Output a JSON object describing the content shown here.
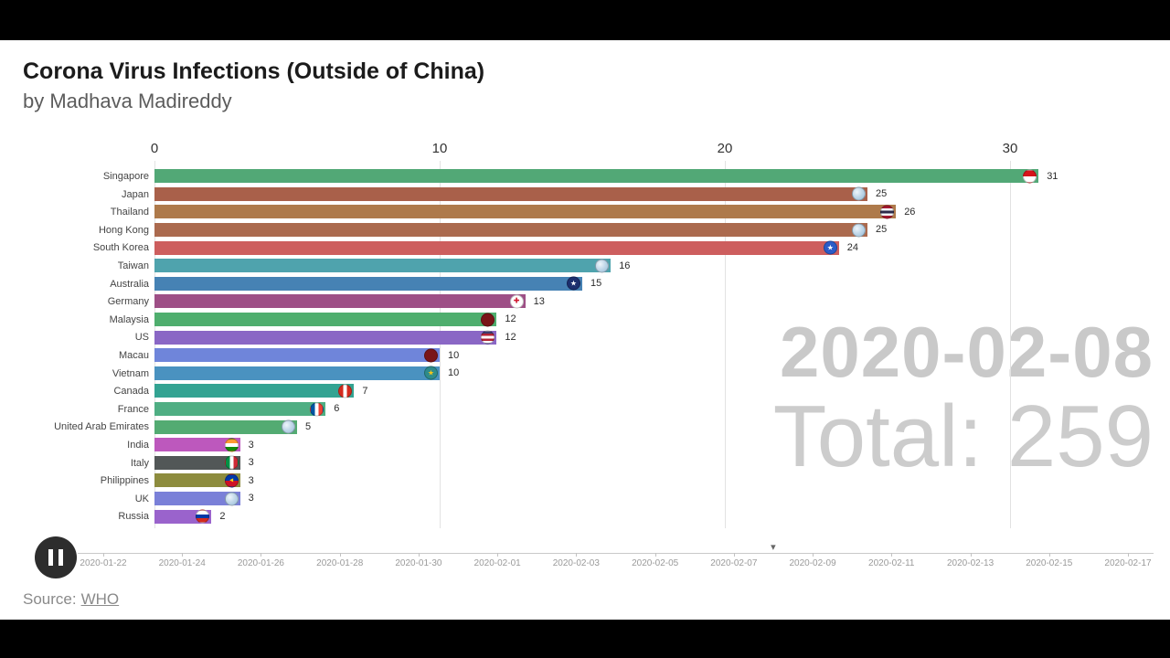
{
  "page": {
    "title": "Corona Virus Infections (Outside of China)",
    "subtitle": "by Madhava Madireddy"
  },
  "overlay": {
    "date": "2020-02-08",
    "total": "Total: 259"
  },
  "source": {
    "label": "Source:",
    "link": "WHO"
  },
  "chart_data": {
    "type": "bar",
    "orientation": "horizontal",
    "title": "Corona Virus Infections (Outside of China)",
    "xlabel": "",
    "ylabel": "",
    "x_ticks": [
      0,
      10,
      20,
      30
    ],
    "xlim": [
      0,
      35
    ],
    "grid": "vertical",
    "date": "2020-02-08",
    "total": 259,
    "rows": [
      {
        "label": "Singapore",
        "value": 31,
        "color": "#52a876",
        "flag": {
          "type": "h",
          "colors": [
            "#d7141a",
            "#ffffff"
          ]
        }
      },
      {
        "label": "Japan",
        "value": 25,
        "color": "#a9604a",
        "flag": {
          "type": "globe"
        }
      },
      {
        "label": "Thailand",
        "value": 26,
        "color": "#ae7a4b",
        "flag": {
          "type": "h",
          "colors": [
            "#a51931",
            "#f4f5f8",
            "#2d2a4a",
            "#f4f5f8",
            "#a51931"
          ]
        }
      },
      {
        "label": "Hong Kong",
        "value": 25,
        "color": "#ab6a4e",
        "flag": {
          "type": "globe"
        }
      },
      {
        "label": "South Korea",
        "value": 24,
        "color": "#cd5e5e",
        "flag": {
          "type": "solid",
          "colors": [
            "#2b5bc7"
          ],
          "glyph": "★",
          "glyph_color": "#ffffff"
        }
      },
      {
        "label": "Taiwan",
        "value": 16,
        "color": "#4fa3ad",
        "flag": {
          "type": "globe"
        }
      },
      {
        "label": "Australia",
        "value": 15,
        "color": "#4682b4",
        "flag": {
          "type": "solid",
          "colors": [
            "#1c2f6e"
          ],
          "glyph": "★",
          "glyph_color": "#ffffff"
        }
      },
      {
        "label": "Germany",
        "value": 13,
        "color": "#9e4f86",
        "flag": {
          "type": "solid",
          "colors": [
            "#ffffff"
          ],
          "glyph": "✚",
          "glyph_color": "#cf142b"
        }
      },
      {
        "label": "Malaysia",
        "value": 12,
        "color": "#4fae6e",
        "flag": {
          "type": "solid",
          "colors": [
            "#7a1518"
          ]
        }
      },
      {
        "label": "US",
        "value": 12,
        "color": "#8a67c5",
        "flag": {
          "type": "h",
          "colors": [
            "#3c3b6e",
            "#b22234",
            "#ffffff",
            "#b22234",
            "#ffffff"
          ]
        }
      },
      {
        "label": "Macau",
        "value": 10,
        "color": "#6f85da",
        "flag": {
          "type": "solid",
          "colors": [
            "#7a1518"
          ]
        }
      },
      {
        "label": "Vietnam",
        "value": 10,
        "color": "#4a92c0",
        "flag": {
          "type": "solid",
          "colors": [
            "#2e8b8b"
          ],
          "glyph": "★",
          "glyph_color": "#f5c518"
        }
      },
      {
        "label": "Canada",
        "value": 7,
        "color": "#33a392",
        "flag": {
          "type": "v",
          "colors": [
            "#d52b1e",
            "#ffffff",
            "#d52b1e"
          ]
        }
      },
      {
        "label": "France",
        "value": 6,
        "color": "#4fae83",
        "flag": {
          "type": "v",
          "colors": [
            "#0055a4",
            "#ffffff",
            "#ef4135"
          ]
        }
      },
      {
        "label": "United Arab Emirates",
        "value": 5,
        "color": "#53ab72",
        "flag": {
          "type": "globe"
        }
      },
      {
        "label": "India",
        "value": 3,
        "color": "#bd58bd",
        "flag": {
          "type": "h",
          "colors": [
            "#ff9933",
            "#ffffff",
            "#138808"
          ]
        }
      },
      {
        "label": "Italy",
        "value": 3,
        "color": "#525757",
        "flag": {
          "type": "v",
          "colors": [
            "#009246",
            "#ffffff",
            "#ce2b37"
          ]
        }
      },
      {
        "label": "Philippines",
        "value": 3,
        "color": "#8d8c3e",
        "flag": {
          "type": "h",
          "colors": [
            "#0038a8",
            "#ce1126"
          ],
          "glyph": "◂",
          "glyph_color": "#fcd116"
        }
      },
      {
        "label": "UK",
        "value": 3,
        "color": "#7a80d8",
        "flag": {
          "type": "globe"
        }
      },
      {
        "label": "Russia",
        "value": 2,
        "color": "#9a63cc",
        "flag": {
          "type": "h",
          "colors": [
            "#ffffff",
            "#0039a6",
            "#d52b1e"
          ]
        }
      }
    ]
  },
  "timeline": {
    "dates": [
      "2020-01-22",
      "2020-01-24",
      "2020-01-26",
      "2020-01-28",
      "2020-01-30",
      "2020-02-01",
      "2020-02-03",
      "2020-02-05",
      "2020-02-07",
      "2020-02-09",
      "2020-02-11",
      "2020-02-13",
      "2020-02-15",
      "2020-02-17"
    ],
    "current": "2020-02-08"
  }
}
